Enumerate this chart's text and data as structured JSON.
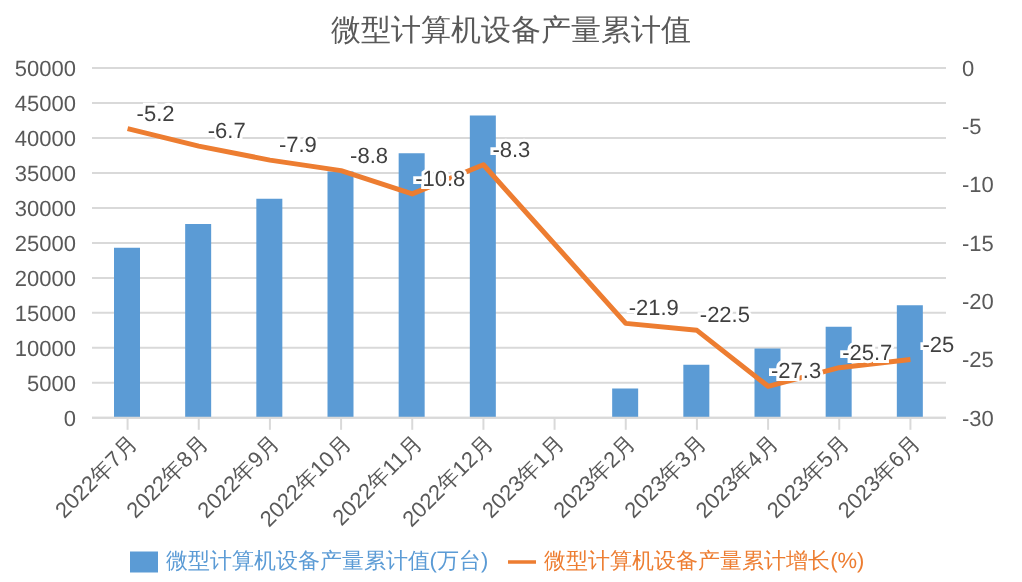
{
  "chart_data": {
    "type": "bar",
    "title": "微型计算机设备产量累计值",
    "categories": [
      "2022年7月",
      "2022年8月",
      "2022年9月",
      "2022年10月",
      "2022年11月",
      "2022年12月",
      "2023年1月",
      "2023年2月",
      "2023年3月",
      "2023年4月",
      "2023年5月",
      "2023年6月"
    ],
    "series": [
      {
        "name": "微型计算机设备产量累计值(万台)",
        "color": "#5b9bd5",
        "values": [
          24300,
          27700,
          31300,
          35200,
          37800,
          43200,
          null,
          4200,
          7600,
          9900,
          13000,
          16100
        ]
      },
      {
        "name": "微型计算机设备产量累计增长(%)",
        "type": "line",
        "axis": "y2",
        "color": "#ed7d31",
        "values": [
          -5.2,
          -6.7,
          -7.9,
          -8.8,
          -10.8,
          -8.3,
          null,
          -21.9,
          -22.5,
          -27.3,
          -25.7,
          -25
        ],
        "value_labels": [
          "-5.2",
          "-6.7",
          "-7.9",
          "-8.8",
          "-10.8",
          "-8.3",
          null,
          "-21.9",
          "-22.5",
          "-27.3",
          "-25.7",
          "-25"
        ]
      }
    ],
    "ylim": [
      0,
      50000
    ],
    "yticks": [
      0,
      5000,
      10000,
      15000,
      20000,
      25000,
      30000,
      35000,
      40000,
      45000,
      50000
    ],
    "y2lim": [
      -30,
      0
    ],
    "y2ticks": [
      -30,
      -25,
      -20,
      -15,
      -10,
      -5,
      0
    ],
    "grid": "y",
    "legend": "bottom",
    "marker": "none"
  }
}
